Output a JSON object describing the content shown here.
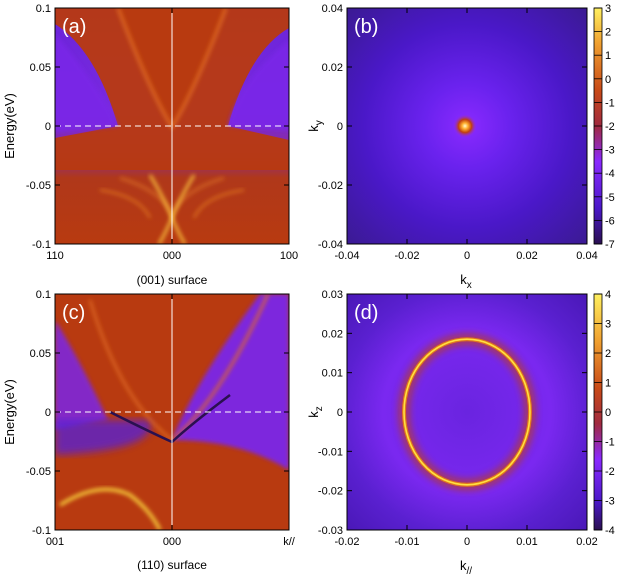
{
  "chart_data": [
    {
      "panel": "(a)",
      "type": "heatmap",
      "content": "surface spectral function, (001) surface",
      "caption": "(001) surface",
      "ylabel": "Energy(eV)",
      "ylim": [
        -0.1,
        0.1
      ],
      "yticks": [
        "0.1",
        "0.05",
        "0",
        "-0.05",
        "-0.1"
      ],
      "yticks_values": [
        0.1,
        0.05,
        0,
        -0.05,
        -0.1
      ],
      "xticks": [
        "110",
        "000",
        "100"
      ],
      "xlim": [
        -1,
        1
      ],
      "xticks_values": [
        -1,
        0,
        1
      ],
      "fermi_level_line": 0
    },
    {
      "panel": "(b)",
      "type": "heatmap",
      "content": "Fermi surface spectral weight, (001) surface",
      "xlabel": "k",
      "xlabel_sub": "x",
      "ylabel": "k",
      "ylabel_sub": "y",
      "xlim": [
        -0.04,
        0.04
      ],
      "ylim": [
        -0.04,
        0.04
      ],
      "xticks": [
        "-0.04",
        "-0.02",
        "0",
        "0.02",
        "0.04"
      ],
      "xticks_values": [
        -0.04,
        -0.02,
        0,
        0.02,
        0.04
      ],
      "yticks": [
        "0.04",
        "0.02",
        "0",
        "-0.02",
        "-0.04"
      ],
      "yticks_values": [
        0.04,
        0.02,
        0,
        -0.02,
        -0.04
      ],
      "feature": {
        "shape": "point",
        "center": [
          0,
          0
        ]
      },
      "colorbar": {
        "min": -7,
        "max": 3,
        "ticks": [
          "3",
          "2",
          "1",
          "0",
          "-1",
          "-2",
          "-3",
          "-4",
          "-5",
          "-6",
          "-7"
        ],
        "ticks_values": [
          3,
          2,
          1,
          0,
          -1,
          -2,
          -3,
          -4,
          -5,
          -6,
          -7
        ]
      }
    },
    {
      "panel": "(c)",
      "type": "heatmap",
      "content": "surface spectral function, (110) surface",
      "caption": "(110) surface",
      "ylabel": "Energy(eV)",
      "ylim": [
        -0.1,
        0.1
      ],
      "yticks": [
        "0.1",
        "0.05",
        "0",
        "-0.05",
        "-0.1"
      ],
      "yticks_values": [
        0.1,
        0.05,
        0,
        -0.05,
        -0.1
      ],
      "xticks": [
        "001",
        "000",
        "k//"
      ],
      "xlim": [
        -1,
        1
      ],
      "xticks_values": [
        -1,
        0,
        1
      ],
      "fermi_level_line": 0
    },
    {
      "panel": "(d)",
      "type": "heatmap",
      "content": "Fermi surface spectral weight, (110) surface",
      "xlabel": "k",
      "xlabel_sub": "//",
      "ylabel": "k",
      "ylabel_sub": "z",
      "xlim": [
        -0.02,
        0.02
      ],
      "ylim": [
        -0.03,
        0.03
      ],
      "xticks": [
        "-0.02",
        "-0.01",
        "0",
        "0.01",
        "0.02"
      ],
      "xticks_values": [
        -0.02,
        -0.01,
        0,
        0.01,
        0.02
      ],
      "yticks": [
        "0.03",
        "0.02",
        "0.01",
        "0",
        "-0.01",
        "-0.02",
        "-0.03"
      ],
      "yticks_values": [
        0.03,
        0.02,
        0.01,
        0,
        -0.01,
        -0.02,
        -0.03
      ],
      "feature": {
        "shape": "ellipse",
        "center": [
          0,
          0
        ],
        "semi_axis_k_par": 0.0105,
        "semi_axis_kz": 0.0185
      },
      "colorbar": {
        "min": -4,
        "max": 4,
        "ticks": [
          "4",
          "3",
          "2",
          "1",
          "0",
          "-1",
          "-2",
          "-3",
          "-4"
        ],
        "ticks_values": [
          4,
          3,
          2,
          1,
          0,
          -1,
          -2,
          -3,
          -4
        ]
      }
    }
  ],
  "colors": {
    "dark": "#3a1f70",
    "purple": "#4a18c8",
    "violet": "#7d22ff",
    "orange_bg": "#b83a10",
    "band": "#e07520",
    "bright": "#ffe040",
    "hot": "#fffcd0"
  }
}
